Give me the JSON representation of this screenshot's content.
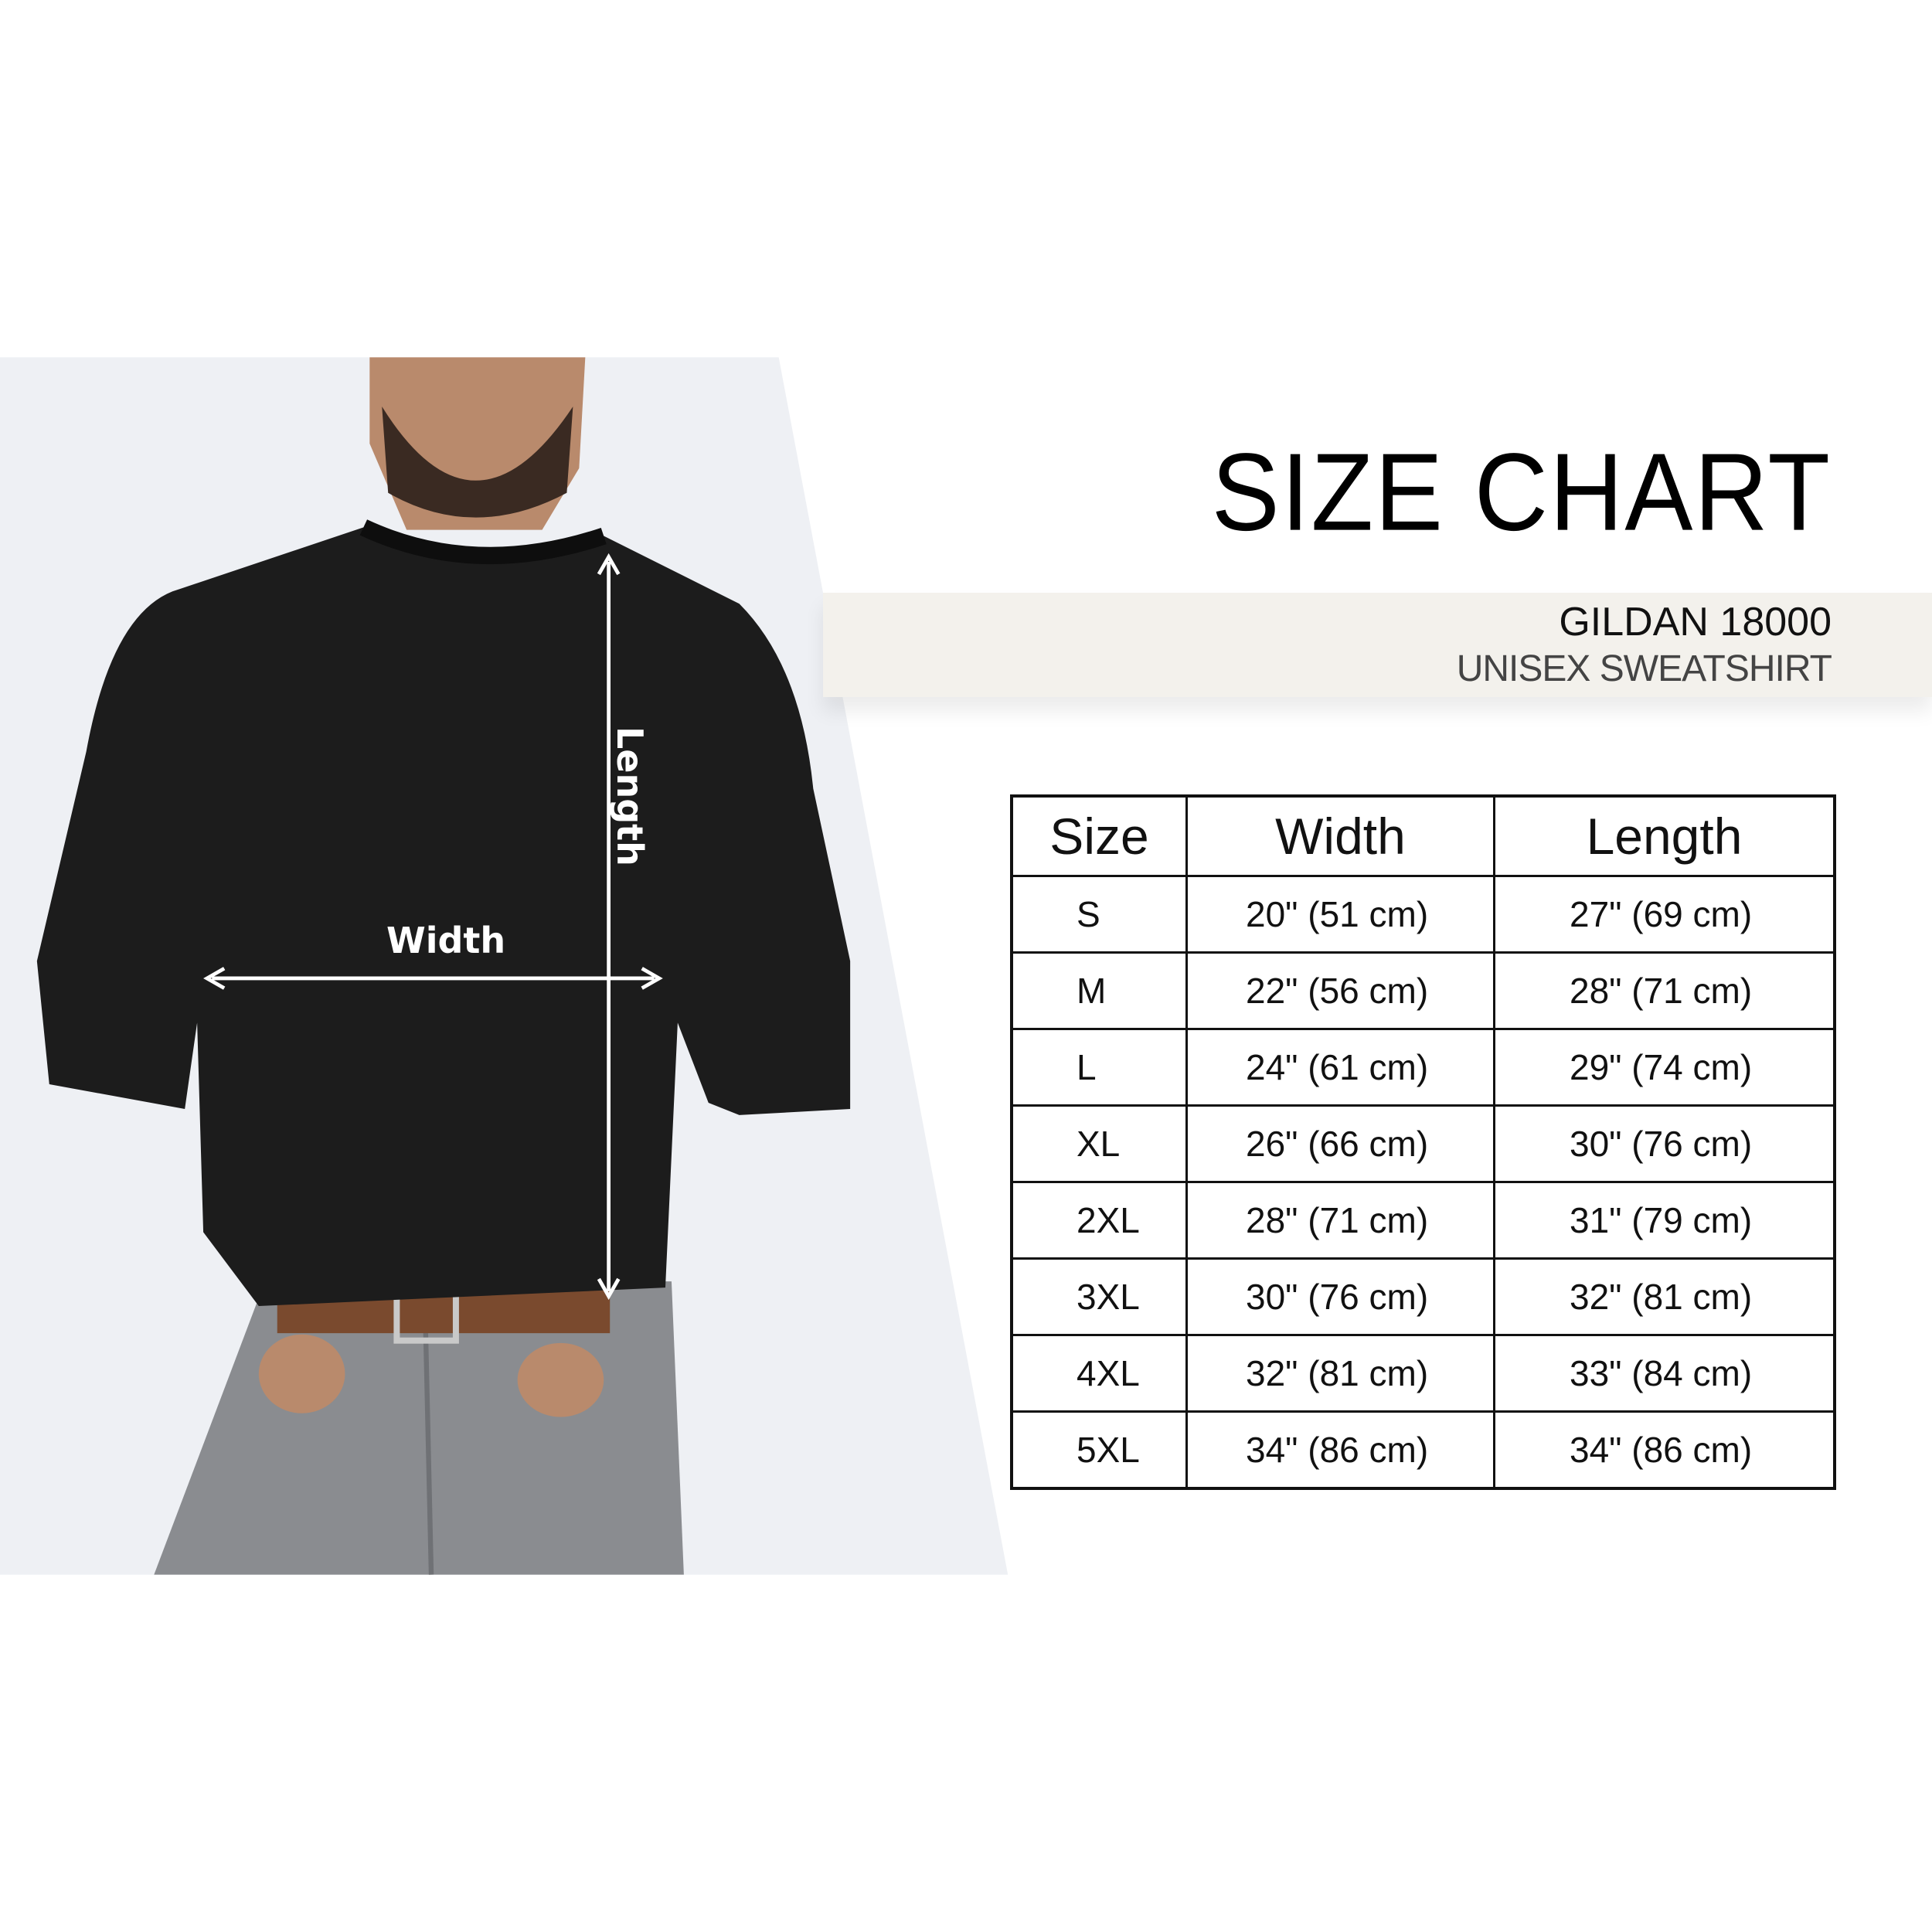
{
  "header": {
    "title": "SIZE CHART",
    "brand": "GILDAN 18000",
    "product": "UNISEX SWEATSHIRT"
  },
  "diagram": {
    "width_label": "Width",
    "length_label": "Length"
  },
  "table": {
    "columns": [
      "Size",
      "Width",
      "Length"
    ],
    "rows": [
      [
        "S",
        "20\" (51 cm)",
        "27\" (69 cm)"
      ],
      [
        "M",
        "22\" (56 cm)",
        "28\" (71 cm)"
      ],
      [
        "L",
        "24\" (61 cm)",
        "29\" (74 cm)"
      ],
      [
        "XL",
        "26\" (66 cm)",
        "30\" (76 cm)"
      ],
      [
        "2XL",
        "28\" (71 cm)",
        "31\"  (79 cm)"
      ],
      [
        "3XL",
        "30\" (76 cm)",
        "32\" (81 cm)"
      ],
      [
        "4XL",
        "32\" (81 cm)",
        "33\" (84 cm)"
      ],
      [
        "5XL",
        "34\" (86 cm)",
        "34\" (86 cm)"
      ]
    ]
  },
  "colors": {
    "band": "#f3f1ec",
    "photo_bg": "#eef0f4",
    "garment": "#1c1c1c"
  }
}
